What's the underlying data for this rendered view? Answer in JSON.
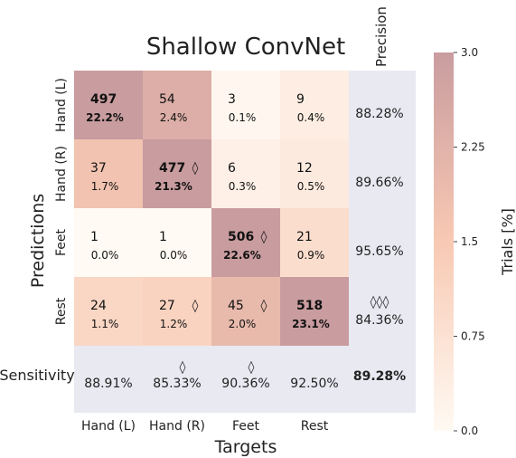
{
  "chart_data": {
    "type": "heatmap",
    "title": "Shallow ConvNet",
    "xlabel": "Targets",
    "ylabel": "Predictions",
    "precision_label": "Precision",
    "sensitivity_label": "Sensitivity",
    "x_categories": [
      "Hand (L)",
      "Hand (R)",
      "Feet",
      "Rest"
    ],
    "y_categories": [
      "Hand (L)",
      "Hand (R)",
      "Feet",
      "Rest"
    ],
    "cells": [
      [
        {
          "count": "497",
          "pct": "22.2%",
          "value": 22.2,
          "bold": true,
          "marker": ""
        },
        {
          "count": "54",
          "pct": "2.4%",
          "value": 2.4,
          "bold": false,
          "marker": ""
        },
        {
          "count": "3",
          "pct": "0.1%",
          "value": 0.1,
          "bold": false,
          "marker": ""
        },
        {
          "count": "9",
          "pct": "0.4%",
          "value": 0.4,
          "bold": false,
          "marker": ""
        }
      ],
      [
        {
          "count": "37",
          "pct": "1.7%",
          "value": 1.7,
          "bold": false,
          "marker": ""
        },
        {
          "count": "477",
          "pct": "21.3%",
          "value": 21.3,
          "bold": true,
          "marker": "◊"
        },
        {
          "count": "6",
          "pct": "0.3%",
          "value": 0.3,
          "bold": false,
          "marker": ""
        },
        {
          "count": "12",
          "pct": "0.5%",
          "value": 0.5,
          "bold": false,
          "marker": ""
        }
      ],
      [
        {
          "count": "1",
          "pct": "0.0%",
          "value": 0.0,
          "bold": false,
          "marker": ""
        },
        {
          "count": "1",
          "pct": "0.0%",
          "value": 0.0,
          "bold": false,
          "marker": ""
        },
        {
          "count": "506",
          "pct": "22.6%",
          "value": 22.6,
          "bold": true,
          "marker": "◊"
        },
        {
          "count": "21",
          "pct": "0.9%",
          "value": 0.9,
          "bold": false,
          "marker": ""
        }
      ],
      [
        {
          "count": "24",
          "pct": "1.1%",
          "value": 1.1,
          "bold": false,
          "marker": ""
        },
        {
          "count": "27",
          "pct": "1.2%",
          "value": 1.2,
          "bold": false,
          "marker": "◊"
        },
        {
          "count": "45",
          "pct": "2.0%",
          "value": 2.0,
          "bold": false,
          "marker": "◊"
        },
        {
          "count": "518",
          "pct": "23.1%",
          "value": 23.1,
          "bold": true,
          "marker": ""
        }
      ]
    ],
    "precision": [
      {
        "value": "88.28%",
        "marker": ""
      },
      {
        "value": "89.66%",
        "marker": ""
      },
      {
        "value": "95.65%",
        "marker": ""
      },
      {
        "value": "84.36%",
        "marker": "◊◊◊"
      }
    ],
    "sensitivity": [
      {
        "value": "88.91%",
        "marker": ""
      },
      {
        "value": "85.33%",
        "marker": "◊"
      },
      {
        "value": "90.36%",
        "marker": "◊"
      },
      {
        "value": "92.50%",
        "marker": ""
      }
    ],
    "overall_accuracy": "89.28%",
    "colorbar": {
      "label": "Trials [%]",
      "vmin": 0.0,
      "vmax": 3.0,
      "ticks": [
        "0.0",
        "0.75",
        "1.5",
        "2.25",
        "3.0"
      ],
      "color_low": "#fffaf3",
      "color_mid": "#f8c9b3",
      "color_high": "#c99c9f"
    },
    "summary_bg": "#e9e9f2"
  }
}
